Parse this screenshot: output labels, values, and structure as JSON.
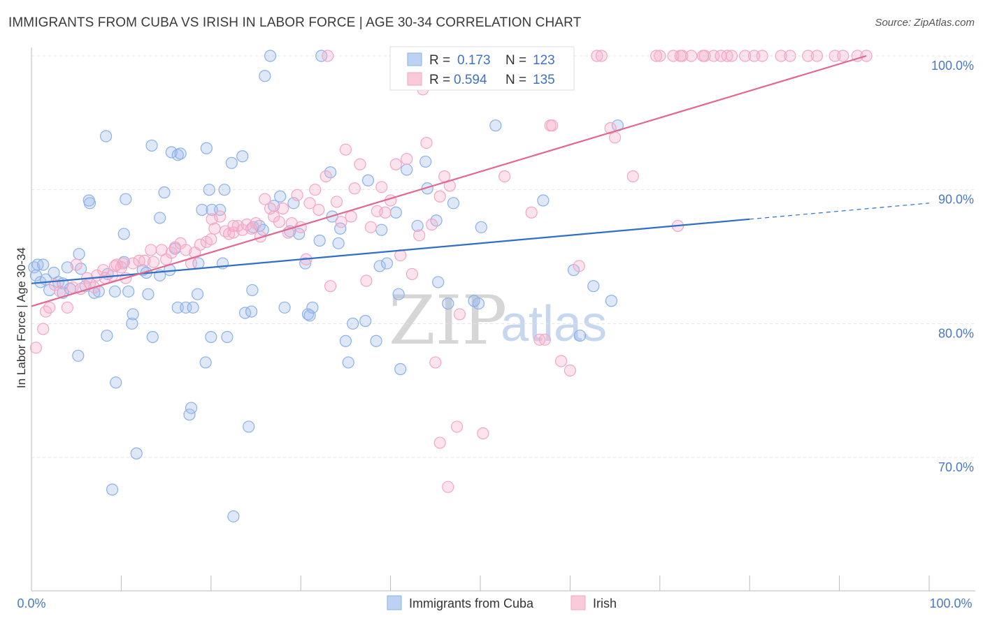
{
  "title": "IMMIGRANTS FROM CUBA VS IRISH IN LABOR FORCE | AGE 30-34 CORRELATION CHART",
  "source": "Source: ZipAtlas.com",
  "watermark": {
    "zip": "ZIP",
    "atlas": "atlas"
  },
  "legend": {
    "rows": [
      {
        "r_label": "R =",
        "r_value": "0.173",
        "n_label": "N =",
        "n_value": "123"
      },
      {
        "r_label": "R =",
        "r_value": "0.594",
        "n_label": "N =",
        "n_value": "135"
      }
    ]
  },
  "chart_data": {
    "type": "scatter",
    "title": "IMMIGRANTS FROM CUBA VS IRISH IN LABOR FORCE | AGE 30-34 CORRELATION CHART",
    "xlabel": "",
    "ylabel": "In Labor Force | Age 30-34",
    "xlim": [
      0,
      100
    ],
    "ylim": [
      61,
      105
    ],
    "x_tick_labels": [
      "0.0%",
      "100.0%"
    ],
    "y_ticks": [
      70,
      80,
      90,
      100
    ],
    "y_tick_labels": [
      "70.0%",
      "80.0%",
      "90.0%",
      "100.0%"
    ],
    "grid": true,
    "legend_position": "top-center",
    "series": [
      {
        "name": "Immigrants from Cuba",
        "color": "#8ab0e8",
        "line_color": "#2f6fc8",
        "r": 0.173,
        "n": 123,
        "trend": {
          "x": [
            0,
            80
          ],
          "y": [
            83.0,
            87.8
          ],
          "dashed_to": [
            100,
            89.0
          ]
        },
        "points": [
          [
            0.3,
            84.2
          ],
          [
            0.5,
            83.6
          ],
          [
            0.7,
            84.4
          ],
          [
            1,
            83.1
          ],
          [
            1.3,
            84.4
          ],
          [
            1.6,
            83.3
          ],
          [
            2,
            82.5
          ],
          [
            2.5,
            83.8
          ],
          [
            3,
            83.1
          ],
          [
            3.5,
            82.3
          ],
          [
            4,
            84.2
          ],
          [
            4.3,
            82.6
          ],
          [
            5.3,
            85.2
          ],
          [
            5.5,
            84.1
          ],
          [
            6,
            82.8
          ],
          [
            7,
            82.3
          ],
          [
            7.5,
            82.4
          ],
          [
            6.5,
            89
          ],
          [
            8.5,
            83.7
          ],
          [
            8.3,
            94
          ],
          [
            9.3,
            82.4
          ],
          [
            10.3,
            86.7
          ],
          [
            10.3,
            84.6
          ],
          [
            10.8,
            82.4
          ],
          [
            11.2,
            80
          ],
          [
            11.3,
            80.7
          ],
          [
            12.4,
            84
          ],
          [
            12.8,
            83.8
          ],
          [
            13,
            82.2
          ],
          [
            13.4,
            93.3
          ],
          [
            13.5,
            79
          ],
          [
            14.3,
            83.6
          ],
          [
            14.3,
            87.9
          ],
          [
            14.8,
            89.8
          ],
          [
            15.4,
            84
          ],
          [
            15.6,
            92.8
          ],
          [
            16,
            85.6
          ],
          [
            16.3,
            92.6
          ],
          [
            16.6,
            92.7
          ],
          [
            16.3,
            81.2
          ],
          [
            17.2,
            81.2
          ],
          [
            17.6,
            73.2
          ],
          [
            17.8,
            73.7
          ],
          [
            18,
            81.2
          ],
          [
            18.5,
            82.2
          ],
          [
            18.6,
            84.5
          ],
          [
            19,
            88.5
          ],
          [
            19.4,
            77.1
          ],
          [
            19.8,
            90
          ],
          [
            20,
            79
          ],
          [
            19.5,
            93.1
          ],
          [
            21,
            88.5
          ],
          [
            21.3,
            84.5
          ],
          [
            21.5,
            90
          ],
          [
            21.8,
            79
          ],
          [
            22.3,
            92
          ],
          [
            22.5,
            65.6
          ],
          [
            23.5,
            92.5
          ],
          [
            23.8,
            80.8
          ],
          [
            24.2,
            72.3
          ],
          [
            24.5,
            80.9
          ],
          [
            24.6,
            82.5
          ],
          [
            24.7,
            87.2
          ],
          [
            25.4,
            87.3
          ],
          [
            25.8,
            87
          ],
          [
            26,
            98.5
          ],
          [
            26.6,
            100
          ],
          [
            27,
            88.8
          ],
          [
            27.7,
            89.5
          ],
          [
            28.2,
            81.2
          ],
          [
            28.8,
            86.9
          ],
          [
            29.2,
            89
          ],
          [
            29.8,
            86.7
          ],
          [
            30.5,
            84.5
          ],
          [
            30.8,
            80.7
          ],
          [
            31,
            80.6
          ],
          [
            31.3,
            81.2
          ],
          [
            32.1,
            86.2
          ],
          [
            32.3,
            100
          ],
          [
            33.3,
            91.3
          ],
          [
            33.5,
            88
          ],
          [
            34.2,
            86
          ],
          [
            34.4,
            87.1
          ],
          [
            35,
            78.7
          ],
          [
            35.3,
            77.1
          ],
          [
            35.8,
            80
          ],
          [
            37.2,
            80.2
          ],
          [
            37.5,
            90.7
          ],
          [
            38.4,
            78.7
          ],
          [
            38.8,
            84.3
          ],
          [
            39,
            87
          ],
          [
            39.6,
            84.5
          ],
          [
            40.6,
            88.3
          ],
          [
            40.9,
            82.2
          ],
          [
            41.1,
            76.6
          ],
          [
            41.8,
            91.5
          ],
          [
            43,
            87.3
          ],
          [
            43.9,
            92.1
          ],
          [
            44.1,
            90.1
          ],
          [
            45.1,
            87.7
          ],
          [
            45.3,
            83.1
          ],
          [
            46.4,
            81.5
          ],
          [
            47,
            89
          ],
          [
            49.8,
            81.5
          ],
          [
            49.3,
            81.7
          ],
          [
            50.1,
            87.2
          ],
          [
            51.7,
            94.8
          ],
          [
            57,
            89.2
          ],
          [
            60.4,
            84
          ],
          [
            61.1,
            79.1
          ],
          [
            62.6,
            82.8
          ],
          [
            64.6,
            81.7
          ],
          [
            65.3,
            94.8
          ],
          [
            20.1,
            88.5
          ],
          [
            6.4,
            89.2
          ],
          [
            9.4,
            75.6
          ],
          [
            9,
            67.6
          ],
          [
            11.7,
            70.3
          ],
          [
            5.2,
            77.6
          ],
          [
            8.4,
            79.1
          ],
          [
            3.5,
            83
          ],
          [
            10.5,
            89.3
          ]
        ]
      },
      {
        "name": "Irish",
        "color": "#f2a6c2",
        "line_color": "#e06891",
        "r": 0.594,
        "n": 135,
        "trend": {
          "x": [
            0,
            93
          ],
          "y": [
            81.3,
            100.0
          ]
        },
        "points": [
          [
            0.5,
            78.2
          ],
          [
            1.3,
            79.6
          ],
          [
            1.6,
            80.9
          ],
          [
            2,
            81.2
          ],
          [
            2.6,
            82.9
          ],
          [
            3.2,
            82.4
          ],
          [
            4,
            81.2
          ],
          [
            4.6,
            82.7
          ],
          [
            5,
            84.4
          ],
          [
            5.5,
            82.6
          ],
          [
            6.2,
            83.4
          ],
          [
            6.5,
            83
          ],
          [
            7,
            82.7
          ],
          [
            7.3,
            83.6
          ],
          [
            8,
            84
          ],
          [
            8.2,
            83.4
          ],
          [
            9,
            83.6
          ],
          [
            9.5,
            84.4
          ],
          [
            10,
            84.2
          ],
          [
            10.2,
            84.5
          ],
          [
            10.5,
            83.4
          ],
          [
            11.3,
            84.5
          ],
          [
            12,
            84.7
          ],
          [
            12.6,
            84.7
          ],
          [
            13.3,
            85.5
          ],
          [
            13.6,
            84.6
          ],
          [
            14.5,
            85.5
          ],
          [
            15,
            84.8
          ],
          [
            15.6,
            85.3
          ],
          [
            16,
            85.7
          ],
          [
            16.6,
            86
          ],
          [
            17.2,
            85.5
          ],
          [
            17.8,
            84.5
          ],
          [
            18.2,
            85.3
          ],
          [
            18.8,
            85.9
          ],
          [
            19.5,
            86.1
          ],
          [
            20,
            86.3
          ],
          [
            20.4,
            87.1
          ],
          [
            21,
            88
          ],
          [
            21.6,
            86.9
          ],
          [
            22,
            86.7
          ],
          [
            22.5,
            86.8
          ],
          [
            23,
            87.3
          ],
          [
            23.5,
            87
          ],
          [
            24,
            87.4
          ],
          [
            24.5,
            87.1
          ],
          [
            25,
            87.5
          ],
          [
            25.5,
            86.5
          ],
          [
            26,
            89.3
          ],
          [
            26.6,
            88.6
          ],
          [
            27,
            88
          ],
          [
            27.6,
            87.6
          ],
          [
            28,
            88.6
          ],
          [
            28.6,
            86.8
          ],
          [
            29,
            87.5
          ],
          [
            29.6,
            89.6
          ],
          [
            30,
            87.2
          ],
          [
            30.6,
            84.8
          ],
          [
            31,
            89
          ],
          [
            31.6,
            90
          ],
          [
            32,
            88.5
          ],
          [
            32.8,
            91
          ],
          [
            33.3,
            82.8
          ],
          [
            34,
            89.1
          ],
          [
            34.5,
            87.6
          ],
          [
            35,
            93
          ],
          [
            35.6,
            88
          ],
          [
            36,
            90.1
          ],
          [
            36.6,
            91.9
          ],
          [
            37.3,
            83.2
          ],
          [
            37.8,
            87.2
          ],
          [
            38.5,
            88.4
          ],
          [
            39,
            90.2
          ],
          [
            39.4,
            88.3
          ],
          [
            40,
            89.2
          ],
          [
            40.6,
            91.9
          ],
          [
            41.1,
            85.1
          ],
          [
            41.8,
            92.3
          ],
          [
            42.4,
            83.7
          ],
          [
            43.2,
            86.6
          ],
          [
            43.6,
            97.5
          ],
          [
            44,
            93.5
          ],
          [
            44.6,
            87.4
          ],
          [
            45,
            77.1
          ],
          [
            45.5,
            89.5
          ],
          [
            46,
            91
          ],
          [
            46.6,
            90.3
          ],
          [
            47,
            100
          ],
          [
            47.6,
            100
          ],
          [
            48,
            100
          ],
          [
            48.8,
            100
          ],
          [
            49.4,
            100
          ],
          [
            50.2,
            100
          ],
          [
            51,
            100
          ],
          [
            51.6,
            100
          ],
          [
            52.3,
            100
          ],
          [
            53.2,
            100
          ],
          [
            54,
            100
          ],
          [
            55,
            100
          ],
          [
            55.7,
            88.3
          ],
          [
            56.6,
            78.8
          ],
          [
            57.2,
            78.8
          ],
          [
            57.8,
            94.8
          ],
          [
            59,
            77.2
          ],
          [
            60,
            76.5
          ],
          [
            61,
            84.3
          ],
          [
            63.5,
            100
          ],
          [
            64.5,
            94.6
          ],
          [
            65,
            93.9
          ],
          [
            67,
            91
          ],
          [
            70,
            100
          ],
          [
            71.5,
            100
          ],
          [
            72.5,
            100
          ],
          [
            73.5,
            100
          ],
          [
            75,
            100
          ],
          [
            76,
            100
          ],
          [
            77.5,
            100
          ],
          [
            78,
            100
          ],
          [
            79.5,
            100
          ],
          [
            80.5,
            100
          ],
          [
            81.4,
            100
          ],
          [
            83.5,
            100
          ],
          [
            84.5,
            100
          ],
          [
            86.5,
            100
          ],
          [
            87.5,
            100
          ],
          [
            89.5,
            100
          ],
          [
            90.4,
            100
          ],
          [
            92,
            100
          ],
          [
            93,
            100
          ],
          [
            63,
            100
          ],
          [
            69.6,
            100
          ],
          [
            72.3,
            100
          ],
          [
            74.8,
            100
          ],
          [
            76.8,
            100
          ],
          [
            33,
            100
          ],
          [
            45.5,
            71.1
          ],
          [
            46.4,
            67.8
          ],
          [
            47.4,
            72.3
          ],
          [
            50.3,
            71.8
          ],
          [
            47.7,
            80.7
          ],
          [
            52.7,
            91
          ],
          [
            22.5,
            87.3
          ],
          [
            9.3,
            84.3
          ],
          [
            20.1,
            87.8
          ],
          [
            72,
            87.3
          ],
          [
            58,
            94.8
          ]
        ]
      }
    ]
  },
  "bottom_legend": {
    "items": [
      {
        "label": "Immigrants from Cuba"
      },
      {
        "label": "Irish"
      }
    ]
  },
  "colors": {
    "cuba_fill": "#8ab0e8",
    "cuba_line": "#2f6fc8",
    "irish_fill": "#f2a6c2",
    "irish_line": "#e06891",
    "tick_text": "#4a78c4"
  }
}
